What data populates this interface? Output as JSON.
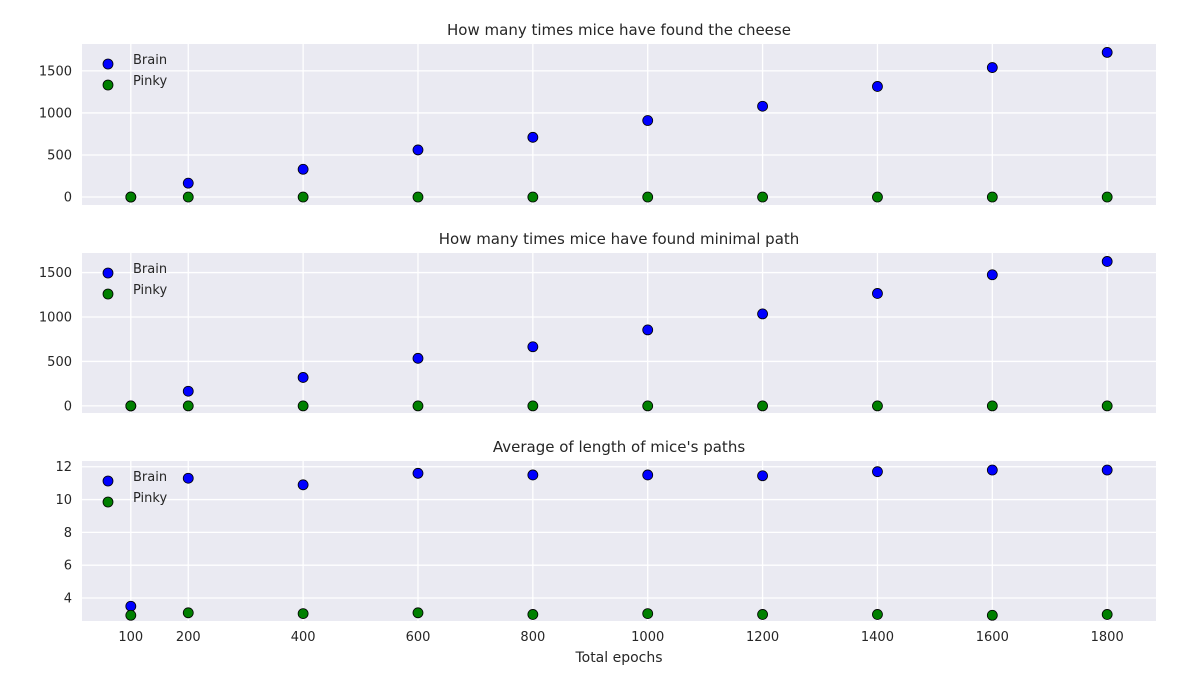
{
  "figure": {
    "xlabel": "Total epochs"
  },
  "colors": {
    "plot_bg": "#eaeaf2",
    "grid": "#ffffff",
    "brain": "#0000ff",
    "pinky": "#008000",
    "marker_edge": "#000000"
  },
  "chart_data": [
    {
      "type": "scatter",
      "title": "How many times mice have found the cheese",
      "xlabel": "",
      "ylabel": "",
      "x_ticks": [
        100,
        200,
        400,
        600,
        800,
        1000,
        1200,
        1400,
        1600,
        1800
      ],
      "y_ticks": [
        0,
        500,
        1000,
        1500
      ],
      "xlim": [
        15,
        1885
      ],
      "ylim": [
        -95,
        1820
      ],
      "grid": true,
      "legend_position": "upper-left",
      "series": [
        {
          "name": "Brain",
          "color": "#0000ff",
          "x": [
            100,
            200,
            400,
            600,
            800,
            1000,
            1200,
            1400,
            1600,
            1800
          ],
          "y": [
            0,
            165,
            330,
            560,
            710,
            910,
            1080,
            1315,
            1540,
            1720
          ]
        },
        {
          "name": "Pinky",
          "color": "#008000",
          "x": [
            100,
            200,
            400,
            600,
            800,
            1000,
            1200,
            1400,
            1600,
            1800
          ],
          "y": [
            0,
            0,
            0,
            0,
            0,
            0,
            0,
            0,
            0,
            0
          ]
        }
      ]
    },
    {
      "type": "scatter",
      "title": "How many times mice have found minimal path",
      "xlabel": "",
      "ylabel": "",
      "x_ticks": [
        100,
        200,
        400,
        600,
        800,
        1000,
        1200,
        1400,
        1600,
        1800
      ],
      "y_ticks": [
        0,
        500,
        1000,
        1500
      ],
      "xlim": [
        15,
        1885
      ],
      "ylim": [
        -80,
        1720
      ],
      "grid": true,
      "legend_position": "upper-left",
      "series": [
        {
          "name": "Brain",
          "color": "#0000ff",
          "x": [
            100,
            200,
            400,
            600,
            800,
            1000,
            1200,
            1400,
            1600,
            1800
          ],
          "y": [
            0,
            165,
            320,
            535,
            665,
            855,
            1035,
            1265,
            1475,
            1625
          ]
        },
        {
          "name": "Pinky",
          "color": "#008000",
          "x": [
            100,
            200,
            400,
            600,
            800,
            1000,
            1200,
            1400,
            1600,
            1800
          ],
          "y": [
            0,
            0,
            0,
            0,
            0,
            0,
            0,
            0,
            0,
            0
          ]
        }
      ]
    },
    {
      "type": "scatter",
      "title": "Average of length of mice's paths",
      "xlabel": "Total epochs",
      "ylabel": "",
      "x_ticks": [
        100,
        200,
        400,
        600,
        800,
        1000,
        1200,
        1400,
        1600,
        1800
      ],
      "y_ticks": [
        4,
        6,
        8,
        10,
        12
      ],
      "xlim": [
        15,
        1885
      ],
      "ylim": [
        2.6,
        12.35
      ],
      "grid": true,
      "legend_position": "upper-left",
      "series": [
        {
          "name": "Brain",
          "color": "#0000ff",
          "x": [
            100,
            200,
            400,
            600,
            800,
            1000,
            1200,
            1400,
            1600,
            1800
          ],
          "y": [
            3.5,
            11.3,
            10.9,
            11.6,
            11.5,
            11.5,
            11.45,
            11.7,
            11.8,
            11.8
          ]
        },
        {
          "name": "Pinky",
          "color": "#008000",
          "x": [
            100,
            200,
            400,
            600,
            800,
            1000,
            1200,
            1400,
            1600,
            1800
          ],
          "y": [
            2.95,
            3.1,
            3.05,
            3.1,
            3.0,
            3.05,
            3.0,
            3.0,
            2.95,
            3.0
          ]
        }
      ]
    }
  ]
}
